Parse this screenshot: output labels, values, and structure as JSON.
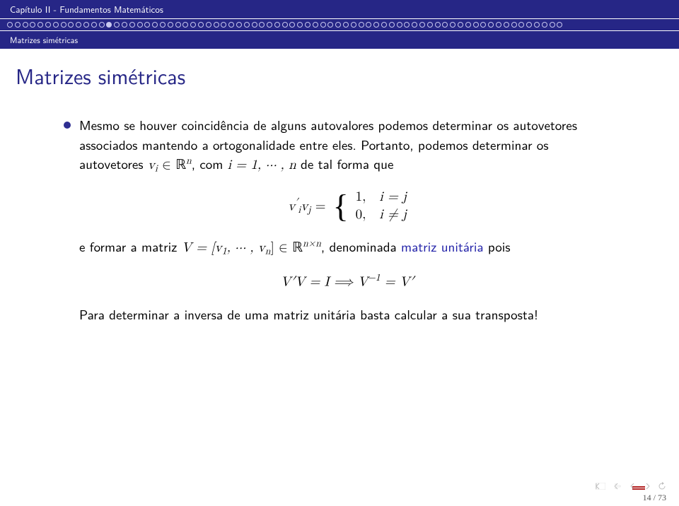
{
  "header": {
    "chapter": "Capítulo II - Fundamentos Matemáticos",
    "section": "Matrizes simétricas"
  },
  "progress": {
    "total": 73,
    "current": 14
  },
  "title": "Matrizes simétricas",
  "body": {
    "p1a": "Mesmo se houver coincidência de alguns autovalores podemos determinar os autovetores associados mantendo a ortogonalidade entre eles. Portanto, podemos determinar os autovetores ",
    "p1b": ", com ",
    "p1c": " de tal forma que",
    "eq1_lhs": "v",
    "eq1_prime": "′",
    "eq1_i": "i",
    "eq1_j": "j",
    "eq1_eq": " = ",
    "eq1_case1_val": "1,",
    "eq1_case1_cond": "i = j",
    "eq1_case2_val": "0,",
    "eq1_case2_cond": "i ≠ j",
    "p2a": "e formar a matriz ",
    "p2b": ", denominada ",
    "p2c": "matriz unitária",
    "p2d": " pois",
    "eq2": "V′V = I  ⟹  V",
    "eq2_exp": "−1",
    "eq2_rhs": " = V′",
    "p3": "Para determinar a inversa de uma matriz unitária basta calcular a sua transposta!",
    "math_vi": "v",
    "math_R": "ℝ",
    "math_n": "n",
    "math_i1": "i = 1, ⋯ , n",
    "math_V": "V = [v",
    "math_Vmid": ", ⋯ , v",
    "math_Vend": "] ∈ ",
    "math_nxn": "n×n",
    "one": "1"
  },
  "footer": {
    "page": "14 / 73"
  },
  "colors": {
    "header_bg": "#262686",
    "title_color": "#262686",
    "body_text": "#000000",
    "highlight": "#2121a8",
    "nav_icon": "#bdbdbd"
  }
}
